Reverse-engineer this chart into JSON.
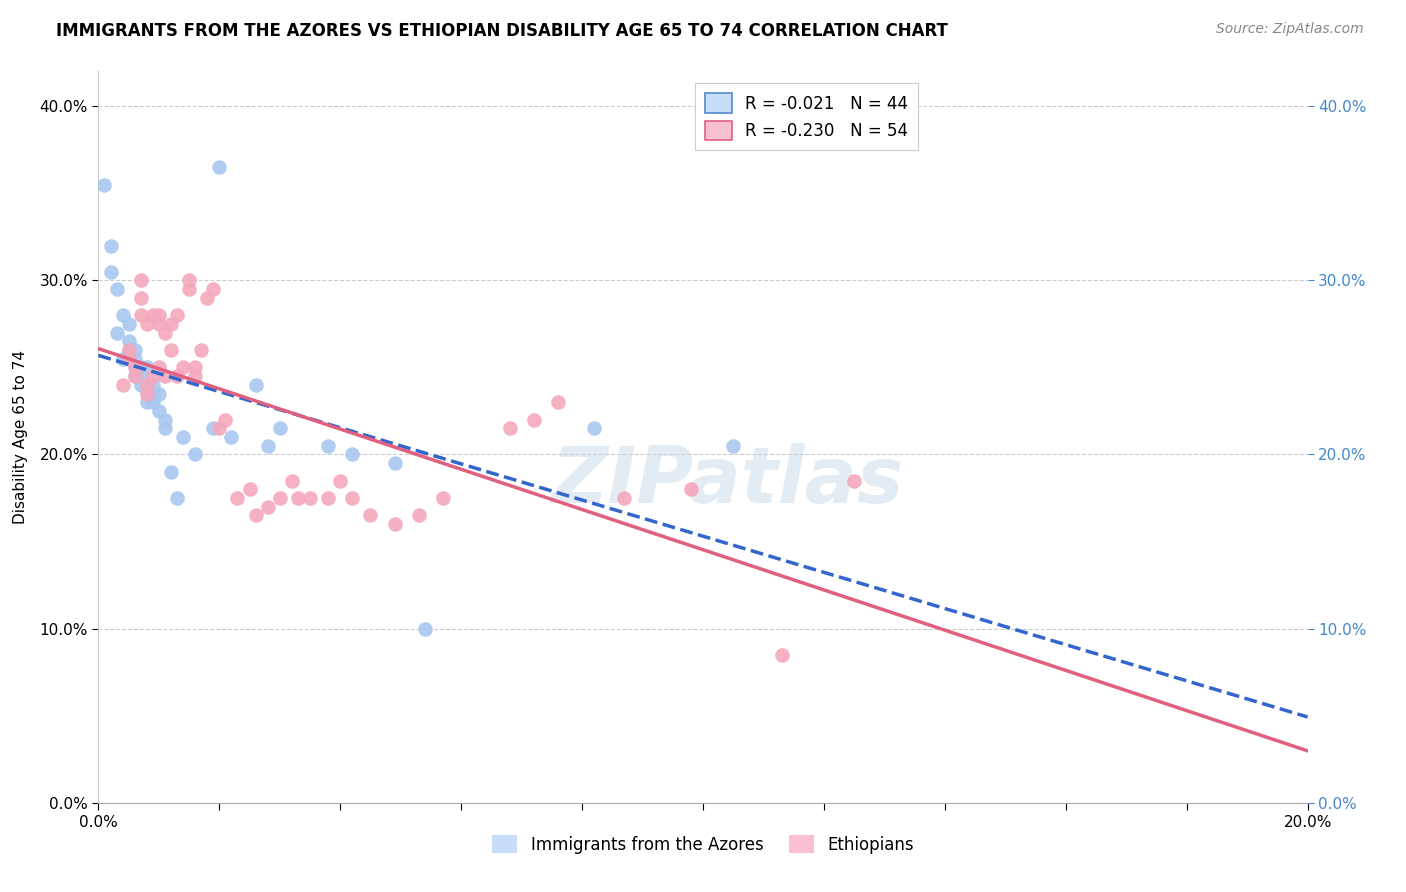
{
  "title": "IMMIGRANTS FROM THE AZORES VS ETHIOPIAN DISABILITY AGE 65 TO 74 CORRELATION CHART",
  "source": "Source: ZipAtlas.com",
  "ylabel": "Disability Age 65 to 74",
  "xlim": [
    0.0,
    0.2
  ],
  "ylim": [
    0.0,
    0.42
  ],
  "yticks": [
    0.0,
    0.1,
    0.2,
    0.3,
    0.4
  ],
  "background_color": "#ffffff",
  "grid_color": "#cccccc",
  "azores_color": "#a8c8f0",
  "ethiopian_color": "#f4a8bc",
  "azores_line_color": "#3366cc",
  "ethiopian_line_color": "#e06080",
  "watermark": "ZIPatlas",
  "azores_R": "-0.021",
  "azores_N": "44",
  "ethiopian_R": "-0.230",
  "ethiopian_N": "54",
  "azores_x": [
    0.001,
    0.002,
    0.002,
    0.003,
    0.003,
    0.004,
    0.004,
    0.005,
    0.005,
    0.005,
    0.006,
    0.006,
    0.006,
    0.006,
    0.007,
    0.007,
    0.007,
    0.008,
    0.008,
    0.008,
    0.008,
    0.009,
    0.009,
    0.009,
    0.01,
    0.01,
    0.011,
    0.011,
    0.012,
    0.013,
    0.014,
    0.016,
    0.019,
    0.02,
    0.022,
    0.026,
    0.028,
    0.03,
    0.038,
    0.042,
    0.049,
    0.054,
    0.082,
    0.105
  ],
  "azores_y": [
    0.355,
    0.305,
    0.32,
    0.295,
    0.27,
    0.28,
    0.255,
    0.26,
    0.265,
    0.275,
    0.245,
    0.25,
    0.255,
    0.26,
    0.24,
    0.245,
    0.25,
    0.23,
    0.235,
    0.24,
    0.25,
    0.23,
    0.235,
    0.24,
    0.225,
    0.235,
    0.215,
    0.22,
    0.19,
    0.175,
    0.21,
    0.2,
    0.215,
    0.365,
    0.21,
    0.24,
    0.205,
    0.215,
    0.205,
    0.2,
    0.195,
    0.1,
    0.215,
    0.205
  ],
  "ethiopian_x": [
    0.004,
    0.005,
    0.005,
    0.006,
    0.006,
    0.007,
    0.007,
    0.007,
    0.008,
    0.008,
    0.008,
    0.009,
    0.009,
    0.01,
    0.01,
    0.01,
    0.011,
    0.011,
    0.012,
    0.012,
    0.013,
    0.013,
    0.014,
    0.015,
    0.015,
    0.016,
    0.016,
    0.017,
    0.018,
    0.019,
    0.02,
    0.021,
    0.023,
    0.025,
    0.026,
    0.028,
    0.03,
    0.032,
    0.033,
    0.035,
    0.038,
    0.04,
    0.042,
    0.045,
    0.049,
    0.053,
    0.057,
    0.068,
    0.072,
    0.076,
    0.087,
    0.098,
    0.113,
    0.125
  ],
  "ethiopian_y": [
    0.24,
    0.255,
    0.26,
    0.245,
    0.25,
    0.28,
    0.29,
    0.3,
    0.235,
    0.24,
    0.275,
    0.28,
    0.245,
    0.25,
    0.275,
    0.28,
    0.245,
    0.27,
    0.26,
    0.275,
    0.28,
    0.245,
    0.25,
    0.295,
    0.3,
    0.245,
    0.25,
    0.26,
    0.29,
    0.295,
    0.215,
    0.22,
    0.175,
    0.18,
    0.165,
    0.17,
    0.175,
    0.185,
    0.175,
    0.175,
    0.175,
    0.185,
    0.175,
    0.165,
    0.16,
    0.165,
    0.175,
    0.215,
    0.22,
    0.23,
    0.175,
    0.18,
    0.085,
    0.185
  ]
}
